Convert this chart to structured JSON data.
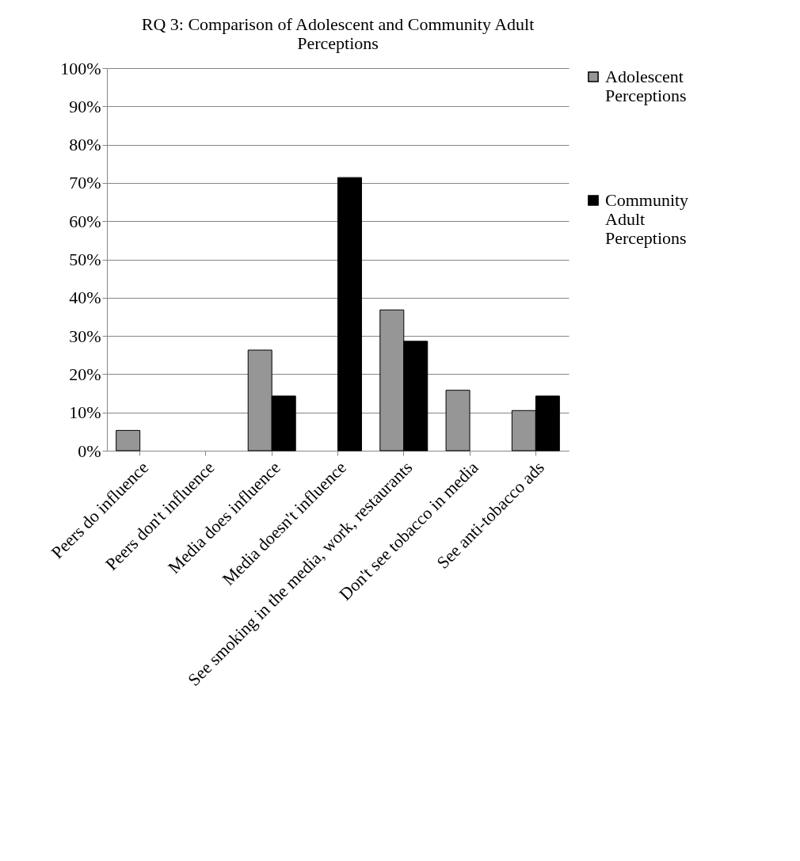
{
  "chart_data": {
    "type": "bar",
    "title": "RQ 3: Comparison of Adolescent and Community Adult Perceptions",
    "categories": [
      "Peers do influence",
      "Peers don't influence",
      "Media does influence",
      "Media doesn't influence",
      "See smoking in the media, work, restaurants",
      "Don't see tobacco in media",
      "See anti-tobacco ads"
    ],
    "series": [
      {
        "name": "Adolescent Perceptions",
        "color": "#969696",
        "values": [
          5.3,
          null,
          26.3,
          null,
          36.8,
          15.8,
          10.5
        ]
      },
      {
        "name": "Community Adult Perceptions",
        "color": "#000000",
        "values": [
          null,
          null,
          14.3,
          71.4,
          28.6,
          null,
          14.3
        ]
      }
    ],
    "ylim": [
      0,
      100
    ],
    "yticks": [
      {
        "value": 0,
        "label": "0%"
      },
      {
        "value": 10,
        "label": "10%"
      },
      {
        "value": 20,
        "label": "20%"
      },
      {
        "value": 30,
        "label": "30%"
      },
      {
        "value": 40,
        "label": "40%"
      },
      {
        "value": 50,
        "label": "50%"
      },
      {
        "value": 60,
        "label": "60%"
      },
      {
        "value": 70,
        "label": "70%"
      },
      {
        "value": 80,
        "label": "80%"
      },
      {
        "value": 90,
        "label": "90%"
      },
      {
        "value": 100,
        "label": "100%"
      }
    ],
    "grid": "y",
    "legend": "right"
  }
}
